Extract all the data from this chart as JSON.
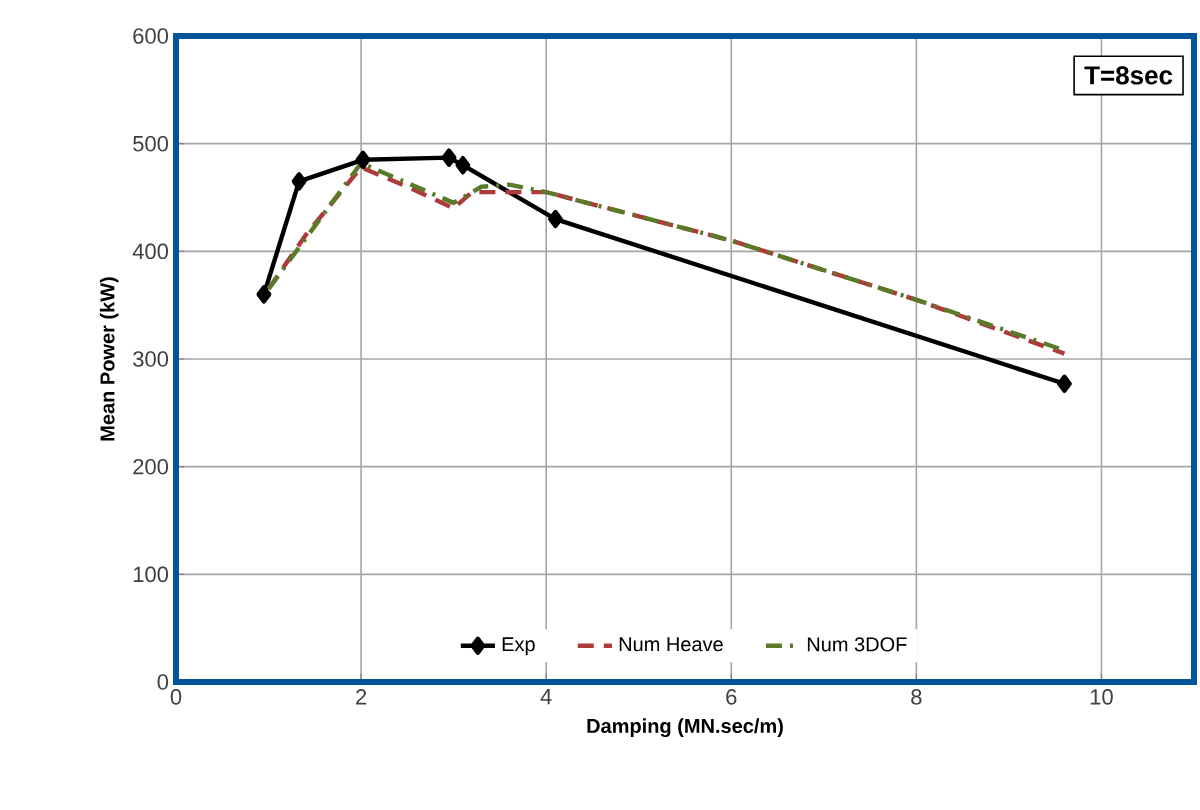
{
  "chart_data": {
    "type": "line",
    "xlabel": "Damping (MN.sec/m)",
    "ylabel": "Mean Power (kW)",
    "xlim": [
      0,
      11
    ],
    "xticks": [
      0,
      2,
      4,
      6,
      8,
      10
    ],
    "ylim": [
      0,
      600
    ],
    "yticks": [
      0,
      100,
      200,
      300,
      400,
      500,
      600
    ],
    "grid": true,
    "legend": "bottom",
    "annotations": [
      "T=8sec"
    ],
    "series": [
      {
        "name": "Exp",
        "color": "#000000",
        "marker": "diamond",
        "line_style": "solid",
        "x": [
          0.95,
          1.33,
          2.02,
          2.95,
          3.1,
          4.1,
          9.6
        ],
        "values": [
          360,
          465,
          485,
          487,
          480,
          430,
          277
        ]
      },
      {
        "name": "Num Heave",
        "color": "#b03a3a",
        "marker": "none",
        "line_style": "dashed",
        "x": [
          1.0,
          1.4,
          2.0,
          2.5,
          3.0,
          3.2,
          4.0,
          6.0,
          8.0,
          9.6
        ],
        "values": [
          365,
          415,
          478,
          460,
          440,
          455,
          455,
          410,
          355,
          305
        ]
      },
      {
        "name": "Num 3DOF",
        "color": "#5a7a2a",
        "marker": "none",
        "line_style": "dashdot",
        "x": [
          1.0,
          2.0,
          3.0,
          3.3,
          3.6,
          4.0,
          6.0,
          8.0,
          9.6
        ],
        "values": [
          365,
          482,
          445,
          460,
          462,
          455,
          410,
          355,
          308
        ]
      }
    ]
  }
}
